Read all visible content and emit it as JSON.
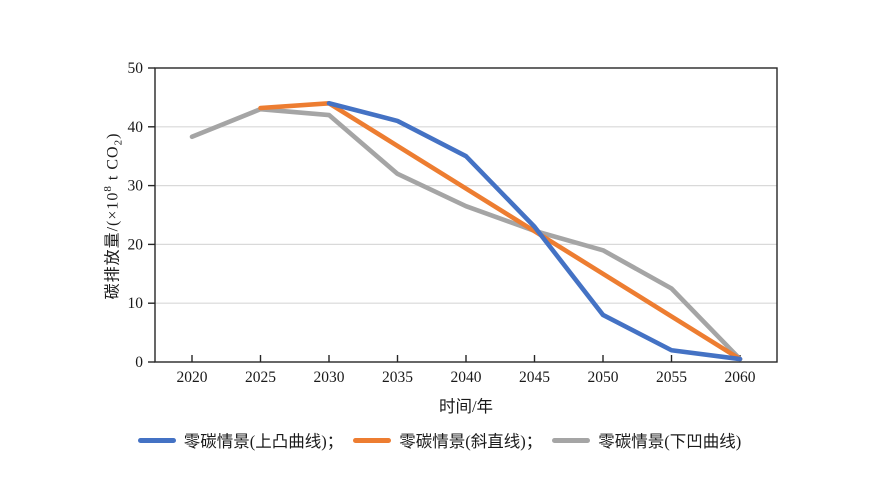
{
  "chart_data": {
    "type": "line",
    "title": "",
    "xlabel": "时间/年",
    "ylabel": "碳排放量/(×10⁸ t CO₂)",
    "ylabel_parts": {
      "prefix": "碳排放量/(×10",
      "sup": "8",
      "mid": " t CO",
      "sub": "2",
      "suffix": ")"
    },
    "x": [
      2020,
      2025,
      2030,
      2035,
      2040,
      2045,
      2050,
      2055,
      2060
    ],
    "x_tick_labels": [
      "2020",
      "2025",
      "2030",
      "2035",
      "2040",
      "2045",
      "2050",
      "2055",
      "2060"
    ],
    "y_ticks": [
      0,
      10,
      20,
      30,
      40,
      50
    ],
    "y_tick_labels": [
      "0",
      "10",
      "20",
      "30",
      "40",
      "50"
    ],
    "ylim": [
      0,
      50
    ],
    "xlim": [
      2017.3,
      2062.7
    ],
    "grid": "horizontal",
    "legend_position": "bottom-center",
    "series": [
      {
        "name": "零碳情景(上凸曲线)",
        "legend_label": "零碳情景(上凸曲线)；",
        "color": "#4472C4",
        "values": [
          null,
          null,
          44,
          41,
          35,
          23,
          8,
          2,
          0.5
        ]
      },
      {
        "name": "零碳情景(斜直线)",
        "legend_label": "零碳情景(斜直线)；",
        "color": "#ED7D31",
        "values": [
          null,
          43.2,
          44,
          36.75,
          29.5,
          22.25,
          15,
          7.75,
          0.5
        ]
      },
      {
        "name": "零碳情景(下凹曲线)",
        "legend_label": "零碳情景(下凹曲线)",
        "color": "#A5A5A5",
        "values": [
          38.3,
          43,
          42,
          32,
          26.5,
          22.3,
          19,
          12.5,
          0.5
        ]
      }
    ],
    "colors": {
      "axis": "#262626",
      "gridline": "#d9d9d9",
      "text": "#1a1a1a",
      "background": "#ffffff"
    }
  }
}
